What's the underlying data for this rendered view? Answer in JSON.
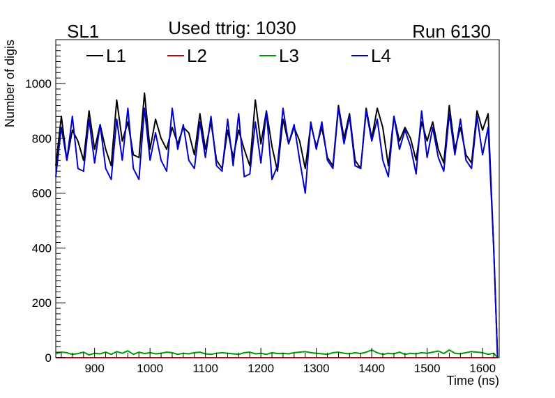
{
  "header": {
    "left_label": "SL1",
    "center_label": "Used ttrig: 1030",
    "right_label": "Run 6130"
  },
  "chart_data": {
    "type": "line",
    "xlabel": "Time (ns)",
    "ylabel": "Number of digis",
    "xlim": [
      830,
      1630
    ],
    "ylim": [
      0,
      1160
    ],
    "x_ticks": [
      900,
      1000,
      1100,
      1200,
      1300,
      1400,
      1500,
      1600
    ],
    "y_ticks": [
      0,
      200,
      400,
      600,
      800,
      1000
    ],
    "grid": false,
    "legend_position": "top-left",
    "colors": {
      "L1": "#000000",
      "L2": "#cc0000",
      "L3": "#009900",
      "L4": "#0000cc"
    },
    "series": [
      {
        "name": "L1",
        "x": [
          830,
          840,
          850,
          860,
          870,
          880,
          890,
          900,
          910,
          920,
          930,
          940,
          950,
          960,
          970,
          980,
          990,
          1000,
          1010,
          1020,
          1030,
          1040,
          1050,
          1060,
          1070,
          1080,
          1090,
          1100,
          1110,
          1120,
          1130,
          1140,
          1150,
          1160,
          1170,
          1180,
          1190,
          1200,
          1210,
          1220,
          1230,
          1240,
          1250,
          1260,
          1270,
          1280,
          1290,
          1300,
          1310,
          1320,
          1330,
          1340,
          1350,
          1360,
          1370,
          1380,
          1390,
          1400,
          1410,
          1420,
          1430,
          1440,
          1450,
          1460,
          1470,
          1480,
          1490,
          1500,
          1510,
          1520,
          1530,
          1540,
          1550,
          1560,
          1570,
          1580,
          1590,
          1600,
          1610,
          1620,
          1627
        ],
        "values": [
          700,
          880,
          720,
          830,
          790,
          720,
          900,
          760,
          850,
          760,
          700,
          940,
          790,
          860,
          740,
          730,
          965,
          760,
          870,
          800,
          760,
          840,
          780,
          840,
          820,
          740,
          890,
          760,
          860,
          720,
          690,
          830,
          730,
          830,
          760,
          700,
          940,
          780,
          900,
          770,
          680,
          870,
          780,
          840,
          790,
          690,
          850,
          770,
          840,
          730,
          700,
          920,
          800,
          890,
          720,
          690,
          910,
          800,
          910,
          840,
          700,
          880,
          790,
          840,
          800,
          720,
          860,
          790,
          860,
          760,
          710,
          920,
          760,
          840,
          740,
          710,
          900,
          830,
          890,
          400,
          0
        ]
      },
      {
        "name": "L2",
        "x": [
          830,
          1627
        ],
        "values": [
          0,
          0
        ]
      },
      {
        "name": "L3",
        "x": [
          830,
          840,
          850,
          860,
          870,
          880,
          890,
          900,
          910,
          920,
          930,
          940,
          950,
          960,
          970,
          980,
          990,
          1000,
          1010,
          1020,
          1030,
          1040,
          1050,
          1060,
          1070,
          1080,
          1090,
          1100,
          1110,
          1120,
          1130,
          1140,
          1150,
          1160,
          1170,
          1180,
          1190,
          1200,
          1210,
          1220,
          1230,
          1240,
          1250,
          1260,
          1270,
          1280,
          1290,
          1300,
          1310,
          1320,
          1330,
          1340,
          1350,
          1360,
          1370,
          1380,
          1390,
          1400,
          1410,
          1420,
          1430,
          1440,
          1450,
          1460,
          1470,
          1480,
          1490,
          1500,
          1510,
          1520,
          1530,
          1540,
          1550,
          1560,
          1570,
          1580,
          1590,
          1600,
          1610,
          1620,
          1627
        ],
        "values": [
          15,
          20,
          18,
          12,
          15,
          20,
          10,
          16,
          14,
          20,
          12,
          22,
          16,
          25,
          12,
          20,
          15,
          18,
          14,
          16,
          20,
          18,
          12,
          16,
          14,
          18,
          20,
          14,
          12,
          16,
          18,
          16,
          14,
          12,
          18,
          20,
          14,
          16,
          12,
          18,
          15,
          16,
          14,
          18,
          20,
          22,
          18,
          16,
          14,
          12,
          18,
          20,
          16,
          14,
          18,
          15,
          20,
          28,
          18,
          12,
          16,
          14,
          20,
          12,
          16,
          14,
          18,
          16,
          20,
          24,
          15,
          28,
          16,
          14,
          18,
          22,
          20,
          18,
          12,
          16,
          0
        ]
      },
      {
        "name": "L4",
        "x": [
          830,
          840,
          850,
          860,
          870,
          880,
          890,
          900,
          910,
          920,
          930,
          940,
          950,
          960,
          970,
          980,
          990,
          1000,
          1010,
          1020,
          1030,
          1040,
          1050,
          1060,
          1070,
          1080,
          1090,
          1100,
          1110,
          1120,
          1130,
          1140,
          1150,
          1160,
          1170,
          1180,
          1190,
          1200,
          1210,
          1220,
          1230,
          1240,
          1250,
          1260,
          1270,
          1280,
          1290,
          1300,
          1310,
          1320,
          1330,
          1340,
          1350,
          1360,
          1370,
          1380,
          1390,
          1400,
          1410,
          1420,
          1430,
          1440,
          1450,
          1460,
          1470,
          1480,
          1490,
          1500,
          1510,
          1520,
          1530,
          1540,
          1550,
          1560,
          1570,
          1580,
          1590,
          1600,
          1610,
          1620,
          1627
        ],
        "values": [
          660,
          840,
          720,
          880,
          690,
          680,
          870,
          710,
          850,
          690,
          650,
          870,
          720,
          910,
          690,
          650,
          910,
          720,
          820,
          720,
          680,
          910,
          760,
          850,
          720,
          690,
          860,
          730,
          880,
          700,
          680,
          870,
          700,
          890,
          660,
          670,
          860,
          710,
          900,
          650,
          700,
          910,
          780,
          850,
          720,
          600,
          860,
          760,
          860,
          720,
          690,
          910,
          780,
          880,
          700,
          690,
          900,
          790,
          870,
          720,
          660,
          880,
          760,
          830,
          770,
          670,
          900,
          730,
          840,
          730,
          680,
          890,
          740,
          870,
          720,
          690,
          880,
          740,
          840,
          400,
          0
        ]
      }
    ]
  }
}
